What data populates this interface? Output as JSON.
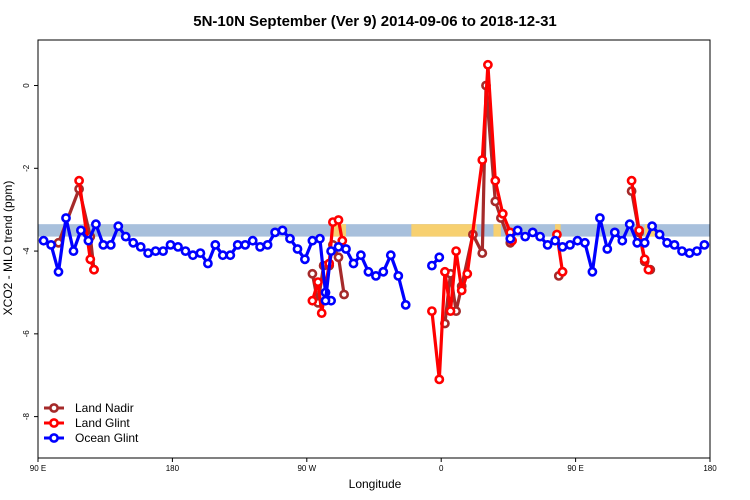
{
  "chart_data": {
    "type": "line",
    "title": "5N-10N September (Ver 9)   2014-09-06 to 2018-12-31",
    "xlabel": "Longitude",
    "ylabel": "XCO2 - MLO trend (ppm)",
    "xlim": [
      -90,
      270
    ],
    "ylim": [
      -9,
      1.1
    ],
    "x_ticks": [
      {
        "value": -90,
        "label": "90 E"
      },
      {
        "value": -18,
        "label": "180"
      },
      {
        "value": 54,
        "label": "90 W"
      },
      {
        "value": 126,
        "label": "0"
      },
      {
        "value": 198,
        "label": "90 E"
      },
      {
        "value": 270,
        "label": "180"
      }
    ],
    "y_ticks": [
      0,
      -2,
      -4,
      -6,
      -8
    ],
    "grid": false,
    "legend_position": "bottom-left",
    "band": {
      "y_low": -3.65,
      "y_high": -3.35,
      "color": "#a8c0dc",
      "highlight_color": "#f7d070"
    },
    "band_highlights": [
      {
        "x_start": 67,
        "x_end": 75
      },
      {
        "x_start": 110,
        "x_end": 145
      },
      {
        "x_start": 154,
        "x_end": 158
      },
      {
        "x_start": 187,
        "x_end": 190
      },
      {
        "x_start": 235,
        "x_end": 241
      }
    ],
    "series": [
      {
        "name": "Land Nadir",
        "color": "#a52a2a",
        "segments": [
          [
            [
              -79,
              -3.8
            ],
            [
              -68,
              -2.5
            ],
            [
              -62,
              -3.65
            ],
            [
              -60,
              -4.45
            ]
          ],
          [
            [
              57,
              -4.55
            ],
            [
              60,
              -5.25
            ],
            [
              63,
              -4.35
            ],
            [
              66,
              -4.35
            ],
            [
              68,
              -3.85
            ],
            [
              71,
              -4.15
            ],
            [
              74,
              -5.05
            ]
          ],
          [
            [
              128,
              -5.75
            ],
            [
              131,
              -4.55
            ],
            [
              134,
              -5.45
            ],
            [
              137,
              -4.85
            ],
            [
              143,
              -3.6
            ],
            [
              148,
              -4.05
            ],
            [
              150,
              0.0
            ],
            [
              155,
              -2.8
            ],
            [
              158,
              -3.2
            ],
            [
              163,
              -3.8
            ]
          ],
          [
            [
              189,
              -4.6
            ],
            [
              191,
              -4.5
            ]
          ],
          [
            [
              228,
              -2.55
            ],
            [
              232,
              -3.55
            ],
            [
              235,
              -4.25
            ],
            [
              238,
              -4.45
            ]
          ]
        ]
      },
      {
        "name": "Land Glint",
        "color": "#ff0000",
        "segments": [
          [
            [
              -68,
              -2.3
            ],
            [
              -62,
              -4.2
            ],
            [
              -60,
              -4.45
            ]
          ],
          [
            [
              57,
              -5.2
            ],
            [
              60,
              -4.75
            ],
            [
              62,
              -5.5
            ],
            [
              66,
              -4.3
            ],
            [
              68,
              -3.3
            ],
            [
              71,
              -3.25
            ],
            [
              73,
              -3.75
            ]
          ],
          [
            [
              121,
              -5.45
            ],
            [
              125,
              -7.1
            ],
            [
              128,
              -4.5
            ],
            [
              131,
              -5.45
            ],
            [
              134,
              -4.0
            ],
            [
              137,
              -4.95
            ],
            [
              140,
              -4.55
            ],
            [
              148,
              -1.8
            ],
            [
              151,
              0.5
            ],
            [
              155,
              -2.3
            ],
            [
              159,
              -3.1
            ],
            [
              163,
              -3.55
            ],
            [
              164,
              -3.75
            ]
          ],
          [
            [
              188,
              -3.6
            ],
            [
              191,
              -4.5
            ]
          ],
          [
            [
              228,
              -2.3
            ],
            [
              232,
              -3.5
            ],
            [
              235,
              -4.2
            ],
            [
              237,
              -4.45
            ]
          ]
        ]
      },
      {
        "name": "Ocean Glint",
        "color": "#0000ff",
        "segments": [
          [
            [
              -87,
              -3.75
            ],
            [
              -83,
              -3.85
            ],
            [
              -79,
              -4.5
            ],
            [
              -75,
              -3.2
            ],
            [
              -71,
              -4.0
            ],
            [
              -67,
              -3.5
            ],
            [
              -63,
              -3.75
            ],
            [
              -59,
              -3.35
            ],
            [
              -55,
              -3.85
            ],
            [
              -51,
              -3.85
            ],
            [
              -47,
              -3.4
            ],
            [
              -43,
              -3.65
            ],
            [
              -39,
              -3.8
            ],
            [
              -35,
              -3.9
            ],
            [
              -31,
              -4.05
            ],
            [
              -27,
              -4.0
            ],
            [
              -23,
              -4.0
            ],
            [
              -19,
              -3.85
            ],
            [
              -15,
              -3.9
            ],
            [
              -11,
              -4.0
            ],
            [
              -7,
              -4.1
            ],
            [
              -3,
              -4.05
            ],
            [
              1,
              -4.3
            ],
            [
              5,
              -3.85
            ],
            [
              9,
              -4.1
            ],
            [
              13,
              -4.1
            ],
            [
              17,
              -3.85
            ],
            [
              21,
              -3.85
            ],
            [
              25,
              -3.75
            ],
            [
              29,
              -3.9
            ],
            [
              33,
              -3.85
            ],
            [
              37,
              -3.55
            ],
            [
              41,
              -3.5
            ],
            [
              45,
              -3.7
            ],
            [
              49,
              -3.95
            ],
            [
              53,
              -4.2
            ],
            [
              57,
              -3.75
            ],
            [
              61,
              -3.7
            ],
            [
              64,
              -5.0
            ],
            [
              67,
              -5.2
            ]
          ],
          [
            [
              64,
              -5.2
            ],
            [
              67,
              -4.0
            ],
            [
              71,
              -3.9
            ],
            [
              75,
              -3.95
            ],
            [
              79,
              -4.3
            ],
            [
              83,
              -4.1
            ],
            [
              87,
              -4.5
            ],
            [
              91,
              -4.6
            ],
            [
              95,
              -4.5
            ],
            [
              99,
              -4.1
            ],
            [
              103,
              -4.6
            ],
            [
              107,
              -5.3
            ]
          ],
          [
            [
              121,
              -4.35
            ],
            [
              125,
              -4.15
            ]
          ],
          [
            [
              163,
              -3.7
            ],
            [
              167,
              -3.5
            ],
            [
              171,
              -3.65
            ],
            [
              175,
              -3.55
            ],
            [
              179,
              -3.65
            ],
            [
              183,
              -3.85
            ],
            [
              187,
              -3.75
            ],
            [
              191,
              -3.9
            ],
            [
              195,
              -3.85
            ],
            [
              199,
              -3.75
            ],
            [
              203,
              -3.8
            ],
            [
              207,
              -4.5
            ],
            [
              211,
              -3.2
            ],
            [
              215,
              -3.95
            ],
            [
              219,
              -3.55
            ],
            [
              223,
              -3.75
            ],
            [
              227,
              -3.35
            ],
            [
              231,
              -3.8
            ],
            [
              235,
              -3.8
            ],
            [
              239,
              -3.4
            ],
            [
              243,
              -3.6
            ],
            [
              247,
              -3.8
            ],
            [
              251,
              -3.85
            ],
            [
              255,
              -4.0
            ],
            [
              259,
              -4.05
            ],
            [
              263,
              -4.0
            ],
            [
              267,
              -3.85
            ]
          ]
        ]
      }
    ]
  }
}
